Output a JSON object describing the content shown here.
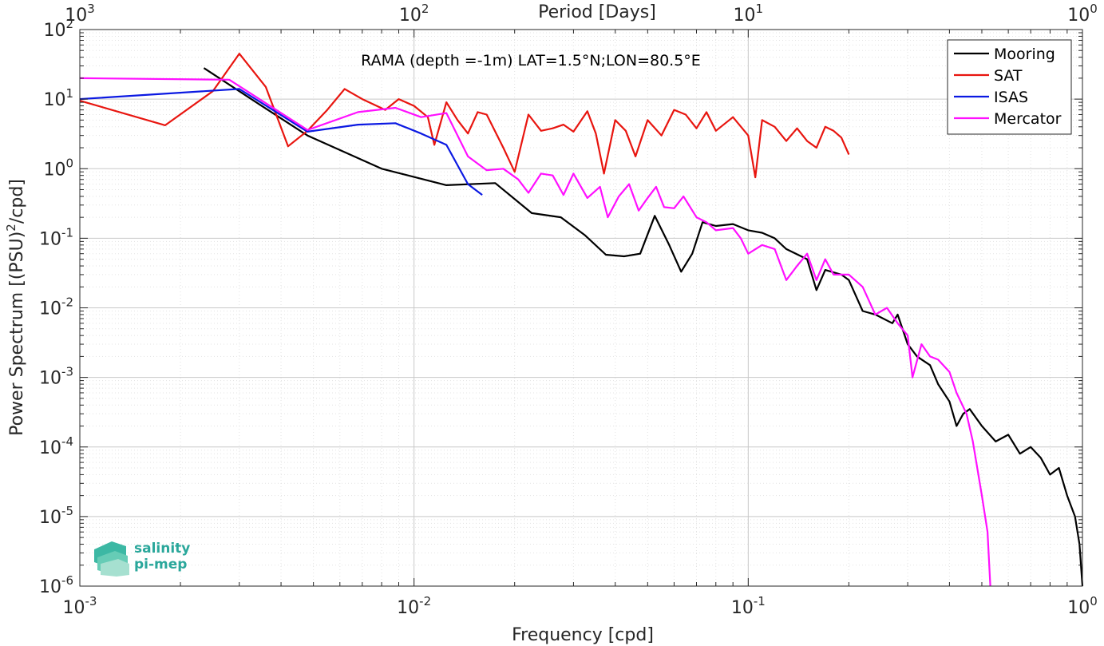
{
  "chart_data": {
    "type": "line",
    "title": "RAMA (depth =-1m) LAT=1.5°N;LON=80.5°E",
    "xlabel": "Frequency [cpd]",
    "ylabel_prefix": "Power Spectrum [(PSU)",
    "ylabel_sup": "2",
    "ylabel_suffix": "/cpd]",
    "top_xlabel": "Period [Days]",
    "x_scale": "log",
    "y_scale": "log",
    "xlim": [
      0.001,
      1
    ],
    "ylim": [
      1e-06,
      100
    ],
    "grid": true,
    "legend_position": "top-right",
    "x_ticks": [
      {
        "value": 0.001,
        "exp": "-3"
      },
      {
        "value": 0.01,
        "exp": "-2"
      },
      {
        "value": 0.1,
        "exp": "-1"
      },
      {
        "value": 1,
        "exp": "0"
      }
    ],
    "y_ticks": [
      {
        "value": 100,
        "exp": "2"
      },
      {
        "value": 10,
        "exp": "1"
      },
      {
        "value": 1,
        "exp": "0"
      },
      {
        "value": 0.1,
        "exp": "-1"
      },
      {
        "value": 0.01,
        "exp": "-2"
      },
      {
        "value": 0.001,
        "exp": "-3"
      },
      {
        "value": 0.0001,
        "exp": "-4"
      },
      {
        "value": 1e-05,
        "exp": "-5"
      },
      {
        "value": 1e-06,
        "exp": "-6"
      }
    ],
    "top_ticks": [
      {
        "value": 0.001,
        "exp": "3"
      },
      {
        "value": 0.01,
        "exp": "2"
      },
      {
        "value": 0.1,
        "exp": "1"
      },
      {
        "value": 1,
        "exp": "0"
      }
    ],
    "series": [
      {
        "name": "Mooring",
        "color": "#000000",
        "points": [
          [
            0.00235,
            28
          ],
          [
            0.0035,
            8
          ],
          [
            0.0048,
            3
          ],
          [
            0.008,
            1.0
          ],
          [
            0.0125,
            0.58
          ],
          [
            0.0175,
            0.62
          ],
          [
            0.0225,
            0.23
          ],
          [
            0.0275,
            0.2
          ],
          [
            0.0325,
            0.11
          ],
          [
            0.0375,
            0.058
          ],
          [
            0.0425,
            0.055
          ],
          [
            0.0475,
            0.06
          ],
          [
            0.0525,
            0.21
          ],
          [
            0.058,
            0.08
          ],
          [
            0.063,
            0.033
          ],
          [
            0.068,
            0.06
          ],
          [
            0.073,
            0.17
          ],
          [
            0.08,
            0.15
          ],
          [
            0.09,
            0.16
          ],
          [
            0.1,
            0.13
          ],
          [
            0.11,
            0.12
          ],
          [
            0.12,
            0.1
          ],
          [
            0.13,
            0.07
          ],
          [
            0.15,
            0.05
          ],
          [
            0.16,
            0.018
          ],
          [
            0.17,
            0.035
          ],
          [
            0.19,
            0.03
          ],
          [
            0.2,
            0.025
          ],
          [
            0.22,
            0.009
          ],
          [
            0.24,
            0.008
          ],
          [
            0.27,
            0.006
          ],
          [
            0.28,
            0.008
          ],
          [
            0.3,
            0.003
          ],
          [
            0.32,
            0.002
          ],
          [
            0.35,
            0.0015
          ],
          [
            0.37,
            0.0008
          ],
          [
            0.4,
            0.00045
          ],
          [
            0.42,
            0.0002
          ],
          [
            0.44,
            0.0003
          ],
          [
            0.46,
            0.00035
          ],
          [
            0.5,
            0.0002
          ],
          [
            0.55,
            0.00012
          ],
          [
            0.6,
            0.00015
          ],
          [
            0.65,
            8e-05
          ],
          [
            0.7,
            0.0001
          ],
          [
            0.75,
            7e-05
          ],
          [
            0.8,
            4e-05
          ],
          [
            0.85,
            5e-05
          ],
          [
            0.9,
            2e-05
          ],
          [
            0.95,
            1e-05
          ],
          [
            0.98,
            4e-06
          ],
          [
            1.0,
            1e-06
          ]
        ]
      },
      {
        "name": "SAT",
        "color": "#e8150f",
        "points": [
          [
            0.001,
            9.5
          ],
          [
            0.0018,
            4.2
          ],
          [
            0.0025,
            13
          ],
          [
            0.003,
            45
          ],
          [
            0.0036,
            15
          ],
          [
            0.0042,
            2.1
          ],
          [
            0.0048,
            3.5
          ],
          [
            0.0055,
            7
          ],
          [
            0.0062,
            14
          ],
          [
            0.007,
            10
          ],
          [
            0.0082,
            7
          ],
          [
            0.009,
            10
          ],
          [
            0.01,
            8
          ],
          [
            0.011,
            5.5
          ],
          [
            0.0115,
            2.2
          ],
          [
            0.0125,
            9
          ],
          [
            0.0135,
            5
          ],
          [
            0.0145,
            3.2
          ],
          [
            0.0155,
            6.5
          ],
          [
            0.0165,
            6
          ],
          [
            0.0185,
            2
          ],
          [
            0.02,
            0.9
          ],
          [
            0.022,
            6
          ],
          [
            0.024,
            3.5
          ],
          [
            0.026,
            3.8
          ],
          [
            0.028,
            4.3
          ],
          [
            0.03,
            3.4
          ],
          [
            0.033,
            6.7
          ],
          [
            0.035,
            3.2
          ],
          [
            0.037,
            0.85
          ],
          [
            0.04,
            5
          ],
          [
            0.043,
            3.5
          ],
          [
            0.046,
            1.5
          ],
          [
            0.05,
            5
          ],
          [
            0.055,
            3
          ],
          [
            0.06,
            7
          ],
          [
            0.065,
            6
          ],
          [
            0.07,
            3.8
          ],
          [
            0.075,
            6.5
          ],
          [
            0.08,
            3.5
          ],
          [
            0.09,
            5.5
          ],
          [
            0.1,
            3
          ],
          [
            0.105,
            0.75
          ],
          [
            0.11,
            5
          ],
          [
            0.12,
            4
          ],
          [
            0.13,
            2.5
          ],
          [
            0.14,
            3.8
          ],
          [
            0.15,
            2.5
          ],
          [
            0.16,
            2
          ],
          [
            0.17,
            4
          ],
          [
            0.18,
            3.5
          ],
          [
            0.19,
            2.8
          ],
          [
            0.2,
            1.6
          ]
        ]
      },
      {
        "name": "ISAS",
        "color": "#0b19e2",
        "points": [
          [
            0.001,
            10
          ],
          [
            0.003,
            14
          ],
          [
            0.0048,
            3.4
          ],
          [
            0.0068,
            4.3
          ],
          [
            0.0088,
            4.5
          ],
          [
            0.0105,
            3.2
          ],
          [
            0.0125,
            2.2
          ],
          [
            0.0145,
            0.6
          ],
          [
            0.016,
            0.42
          ]
        ]
      },
      {
        "name": "Mercator",
        "color": "#ff10ff",
        "points": [
          [
            0.001,
            20
          ],
          [
            0.0028,
            19
          ],
          [
            0.0048,
            3.6
          ],
          [
            0.0068,
            6.5
          ],
          [
            0.0088,
            7.5
          ],
          [
            0.0105,
            5.5
          ],
          [
            0.0125,
            6.3
          ],
          [
            0.0145,
            1.5
          ],
          [
            0.0165,
            0.95
          ],
          [
            0.0185,
            1.0
          ],
          [
            0.0205,
            0.7
          ],
          [
            0.022,
            0.45
          ],
          [
            0.024,
            0.85
          ],
          [
            0.026,
            0.8
          ],
          [
            0.028,
            0.42
          ],
          [
            0.03,
            0.85
          ],
          [
            0.033,
            0.38
          ],
          [
            0.036,
            0.55
          ],
          [
            0.038,
            0.2
          ],
          [
            0.041,
            0.4
          ],
          [
            0.044,
            0.6
          ],
          [
            0.047,
            0.25
          ],
          [
            0.05,
            0.38
          ],
          [
            0.053,
            0.55
          ],
          [
            0.056,
            0.28
          ],
          [
            0.06,
            0.27
          ],
          [
            0.064,
            0.4
          ],
          [
            0.07,
            0.2
          ],
          [
            0.075,
            0.17
          ],
          [
            0.08,
            0.13
          ],
          [
            0.09,
            0.14
          ],
          [
            0.095,
            0.1
          ],
          [
            0.1,
            0.06
          ],
          [
            0.11,
            0.08
          ],
          [
            0.12,
            0.07
          ],
          [
            0.13,
            0.025
          ],
          [
            0.14,
            0.04
          ],
          [
            0.15,
            0.06
          ],
          [
            0.16,
            0.025
          ],
          [
            0.17,
            0.05
          ],
          [
            0.18,
            0.03
          ],
          [
            0.2,
            0.03
          ],
          [
            0.22,
            0.02
          ],
          [
            0.24,
            0.008
          ],
          [
            0.26,
            0.01
          ],
          [
            0.28,
            0.006
          ],
          [
            0.3,
            0.004
          ],
          [
            0.31,
            0.001
          ],
          [
            0.33,
            0.003
          ],
          [
            0.35,
            0.002
          ],
          [
            0.37,
            0.0018
          ],
          [
            0.4,
            0.0012
          ],
          [
            0.42,
            0.0006
          ],
          [
            0.45,
            0.0003
          ],
          [
            0.47,
            0.00012
          ],
          [
            0.5,
            2e-05
          ],
          [
            0.52,
            6e-06
          ],
          [
            0.53,
            1e-06
          ]
        ]
      }
    ]
  },
  "logo": {
    "line1": "salinity",
    "line2": "pi-mep"
  }
}
